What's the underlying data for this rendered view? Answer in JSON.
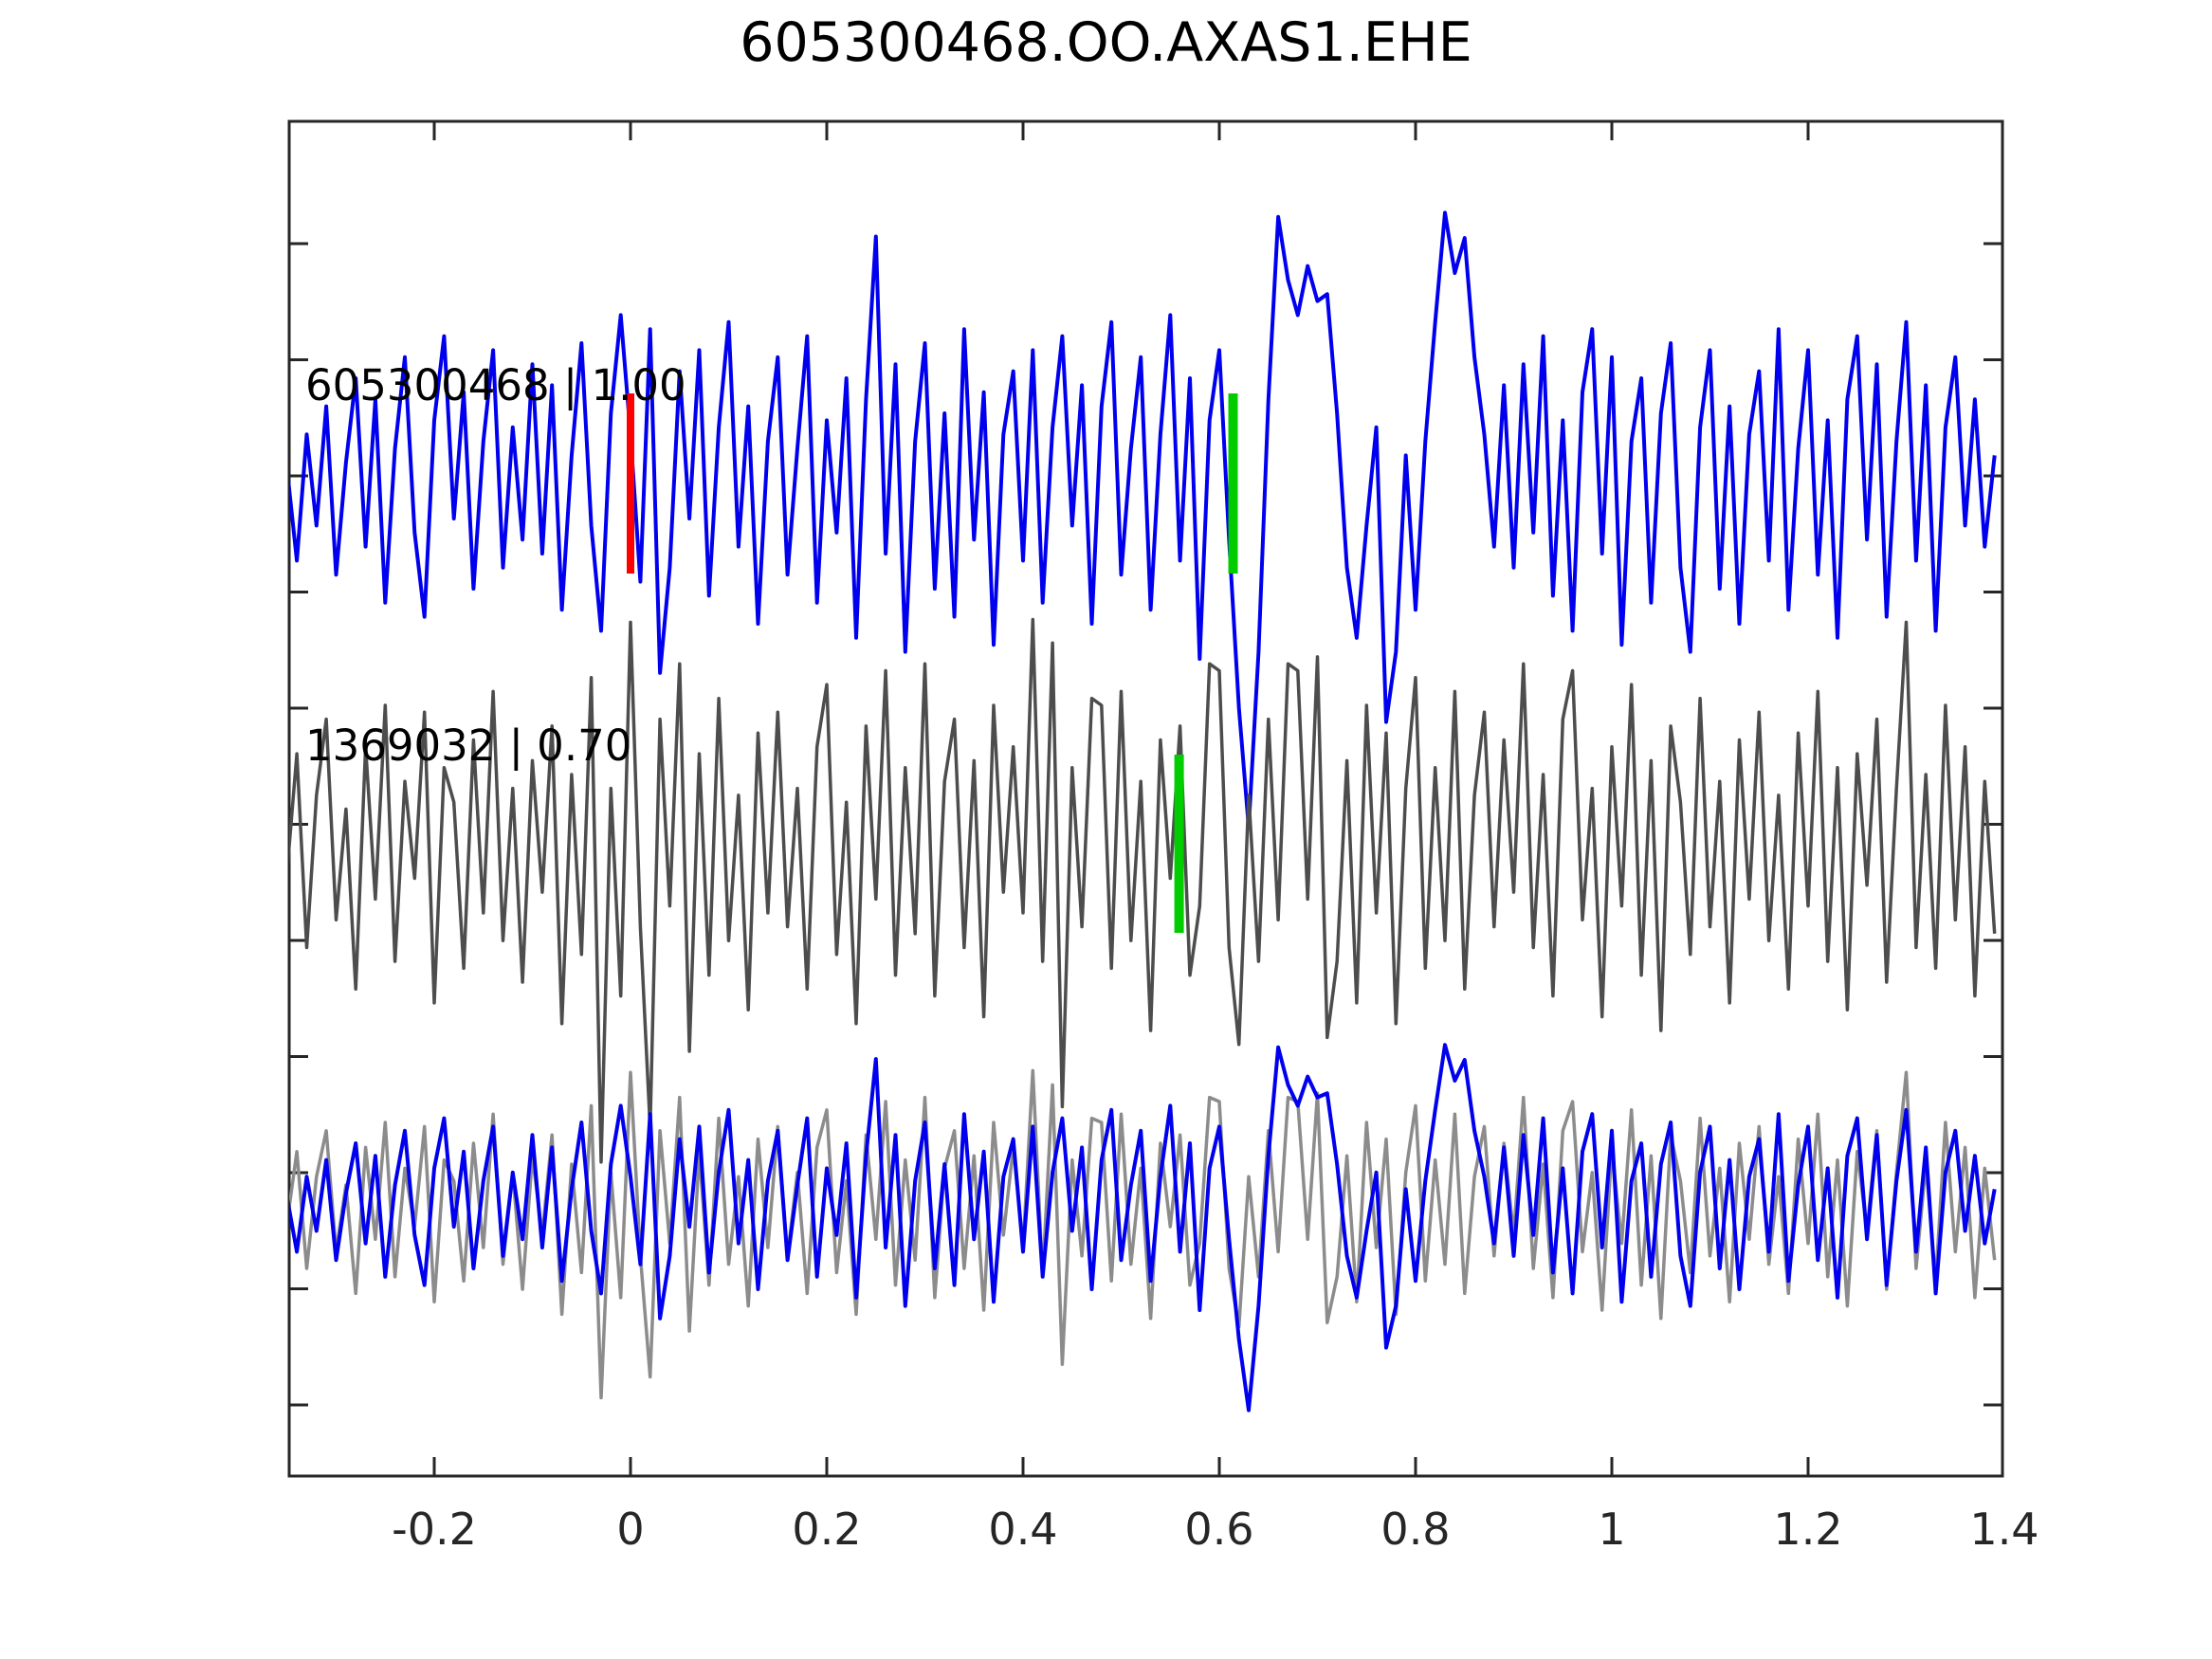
{
  "chart": {
    "title": "605300468.OO.AXAS1.EHE"
  },
  "chart_data": {
    "type": "line",
    "title": "605300468.OO.AXAS1.EHE",
    "xlabel": "",
    "ylabel": "",
    "x_range": [
      -0.35,
      1.4
    ],
    "x_ticks": [
      -0.2,
      0,
      0.2,
      0.4,
      0.6,
      0.8,
      1,
      1.2,
      1.4
    ],
    "x_tick_labels": [
      "-0.2",
      "0",
      "0.2",
      "0.4",
      "0.6",
      "0.8",
      "1",
      "1.2",
      "1.4"
    ],
    "grid": false,
    "legend_position": "none",
    "x_start": -0.35,
    "x_step": 0.01,
    "colors": {
      "detection_trace": "#0000ee",
      "template_trace": "#4d4d4d",
      "overlay_template_trace": "#8c8c8c",
      "axis": "#262626",
      "pick_red": "#ff0000",
      "pick_green": "#00cc00",
      "background": "#ffffff"
    },
    "rows": [
      {
        "label": "605300468 | 1.00",
        "series": [
          "605300468 | 1.00"
        ]
      },
      {
        "label": "1369032 | 0.70",
        "series": [
          "1369032 | 0.70"
        ]
      },
      {
        "label": "",
        "series": [
          "1369032 | 0.70",
          "605300468 | 1.00"
        ]
      }
    ],
    "markers": [
      {
        "row": 0,
        "x": 0.0,
        "color": "#ff0000"
      },
      {
        "row": 0,
        "x": 0.614,
        "color": "#00cc00"
      },
      {
        "row": 1,
        "x": 0.559,
        "color": "#00cc00"
      }
    ],
    "series": [
      {
        "name": "605300468 | 1.00",
        "color": "#0000ee",
        "values": [
          0.1,
          -0.55,
          0.35,
          -0.3,
          0.55,
          -0.65,
          0.15,
          0.75,
          -0.45,
          0.6,
          -0.85,
          0.25,
          0.9,
          -0.35,
          -0.95,
          0.45,
          1.05,
          -0.25,
          0.65,
          -0.75,
          0.3,
          0.95,
          -0.6,
          0.4,
          -0.4,
          0.85,
          -0.5,
          0.7,
          -0.9,
          0.2,
          1.0,
          -0.3,
          -1.05,
          0.5,
          1.2,
          0.35,
          -0.7,
          1.1,
          -1.35,
          -0.6,
          0.8,
          -0.25,
          0.95,
          -0.8,
          0.4,
          1.15,
          -0.45,
          0.55,
          -1.0,
          0.3,
          0.9,
          -0.65,
          0.25,
          1.05,
          -0.85,
          0.45,
          -0.35,
          0.75,
          -1.1,
          0.6,
          1.76,
          -0.5,
          0.85,
          -1.2,
          0.3,
          1.0,
          -0.75,
          0.5,
          -0.95,
          1.1,
          -0.4,
          0.65,
          -1.15,
          0.35,
          0.8,
          -0.55,
          0.95,
          -0.85,
          0.4,
          1.05,
          -0.3,
          0.7,
          -1.0,
          0.55,
          1.15,
          -0.65,
          0.25,
          0.9,
          -0.9,
          0.35,
          1.2,
          -0.55,
          0.75,
          -1.25,
          0.45,
          0.95,
          -0.4,
          -1.6,
          -2.45,
          -1.2,
          0.6,
          1.9,
          1.45,
          1.2,
          1.55,
          1.3,
          1.35,
          0.5,
          -0.6,
          -1.1,
          -0.3,
          0.4,
          -1.7,
          -1.2,
          0.2,
          -0.9,
          0.3,
          1.15,
          1.93,
          1.5,
          1.75,
          0.9,
          0.35,
          -0.45,
          0.7,
          -0.6,
          0.85,
          -0.35,
          1.05,
          -0.8,
          0.45,
          -1.05,
          0.65,
          1.1,
          -0.5,
          0.9,
          -1.15,
          0.3,
          0.75,
          -0.85,
          0.5,
          1.0,
          -0.6,
          -1.2,
          0.4,
          0.95,
          -0.75,
          0.55,
          -1.0,
          0.35,
          0.8,
          -0.55,
          1.1,
          -0.9,
          0.25,
          0.95,
          -0.65,
          0.45,
          -1.1,
          0.6,
          1.05,
          -0.4,
          0.85,
          -0.95,
          0.3,
          1.15,
          -0.55,
          0.7,
          -1.05,
          0.4,
          0.9,
          -0.3,
          0.6,
          -0.45,
          0.2
        ]
      },
      {
        "name": "1369032 | 0.70",
        "color": "#4d4d4d",
        "values": [
          -0.2,
          0.65,
          -0.75,
          0.35,
          0.9,
          -0.55,
          0.25,
          -1.05,
          0.7,
          -0.4,
          1.0,
          -0.85,
          0.45,
          -0.25,
          0.95,
          -1.15,
          0.55,
          0.3,
          -0.9,
          0.75,
          -0.5,
          1.1,
          -0.7,
          0.4,
          -1.0,
          0.6,
          -0.35,
          0.85,
          -1.3,
          0.5,
          -0.8,
          1.2,
          -2.3,
          0.4,
          -1.1,
          1.6,
          -0.6,
          -2.05,
          0.9,
          -0.45,
          1.3,
          -1.5,
          0.65,
          -0.95,
          1.05,
          -0.7,
          0.35,
          -1.2,
          0.8,
          -0.5,
          0.95,
          -0.6,
          0.4,
          -1.05,
          0.7,
          1.15,
          -0.8,
          0.3,
          -1.3,
          0.85,
          -0.4,
          1.25,
          -0.95,
          0.55,
          -0.65,
          1.3,
          -1.1,
          0.45,
          0.9,
          -0.75,
          0.6,
          -1.25,
          1.0,
          -0.35,
          0.7,
          -0.5,
          1.62,
          -0.85,
          1.45,
          -1.9,
          0.55,
          -0.6,
          1.05,
          1.0,
          -0.9,
          1.1,
          -0.7,
          0.45,
          -1.35,
          0.75,
          -0.25,
          0.85,
          -0.95,
          -0.45,
          1.3,
          1.25,
          -0.75,
          -1.45,
          0.35,
          -0.85,
          0.9,
          -0.55,
          1.3,
          1.25,
          -0.4,
          1.35,
          -1.4,
          -0.85,
          0.6,
          -1.15,
          1.0,
          -0.5,
          0.8,
          -1.3,
          0.4,
          1.2,
          -0.9,
          0.55,
          -0.7,
          1.1,
          -1.05,
          0.35,
          0.95,
          -0.6,
          0.75,
          -0.35,
          1.3,
          -0.75,
          0.5,
          -1.1,
          0.9,
          1.25,
          -0.55,
          0.4,
          -1.25,
          0.7,
          -0.45,
          1.15,
          -0.95,
          0.6,
          -1.35,
          0.85,
          0.3,
          -0.8,
          1.05,
          -0.6,
          0.45,
          -1.15,
          0.75,
          -0.4,
          0.95,
          -0.7,
          0.35,
          -1.05,
          0.8,
          -0.45,
          1.1,
          -0.85,
          0.55,
          -1.2,
          0.65,
          -0.3,
          0.9,
          -1.0,
          0.4,
          1.6,
          -0.75,
          0.5,
          -0.9,
          1.0,
          -0.55,
          0.7,
          -1.1,
          0.45,
          -0.65
        ]
      }
    ]
  }
}
